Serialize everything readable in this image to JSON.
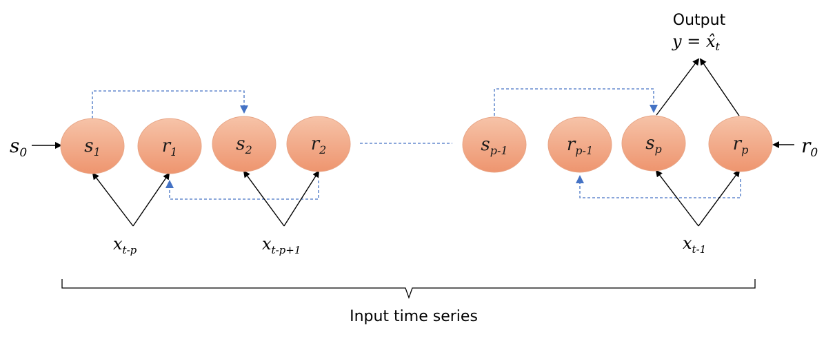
{
  "colors": {
    "node_fill_top": "#f4b99d",
    "node_fill_bottom": "#ef9a76",
    "node_stroke": "#e8a586",
    "solid_arrow": "#000000",
    "dashed_link": "#4472c4"
  },
  "output": {
    "title": "Output",
    "equation": {
      "lhs": "y = ",
      "main": "x̂",
      "sub": "t"
    }
  },
  "inputs": {
    "left": {
      "main": "s",
      "sub": "0"
    },
    "right": {
      "main": "r",
      "sub": "0"
    }
  },
  "nodes": [
    {
      "main": "s",
      "sub": "1"
    },
    {
      "main": "r",
      "sub": "1"
    },
    {
      "main": "s",
      "sub": "2"
    },
    {
      "main": "r",
      "sub": "2"
    },
    {
      "main": "s",
      "sub": "p-1"
    },
    {
      "main": "r",
      "sub": "p-1"
    },
    {
      "main": "s",
      "sub": "p"
    },
    {
      "main": "r",
      "sub": "p"
    }
  ],
  "series_inputs": [
    {
      "main": "x",
      "sub": "t-p"
    },
    {
      "main": "x",
      "sub": "t-p+1"
    },
    {
      "main": "x",
      "sub": "t-1"
    }
  ],
  "caption": "Input time series"
}
